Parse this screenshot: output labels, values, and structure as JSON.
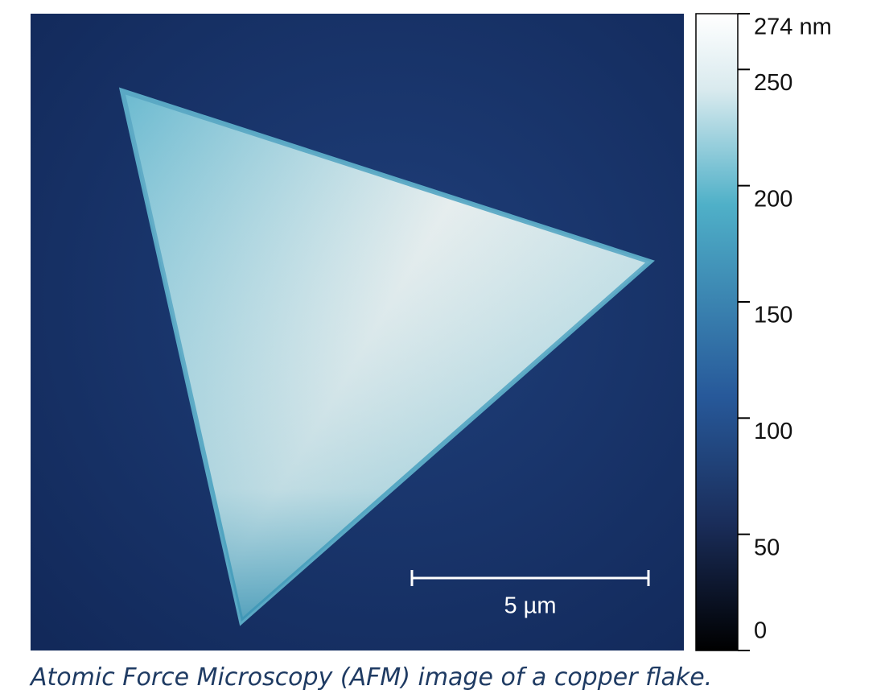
{
  "image": {
    "scale_bar_label": "5 µm"
  },
  "colorbar": {
    "range": [
      0,
      274
    ],
    "ticks": [
      0,
      50,
      100,
      150,
      200,
      250,
      {
        "value": 274,
        "label": "274 nm"
      }
    ]
  },
  "caption": "Atomic Force Microscopy (AFM) image of a copper flake."
}
